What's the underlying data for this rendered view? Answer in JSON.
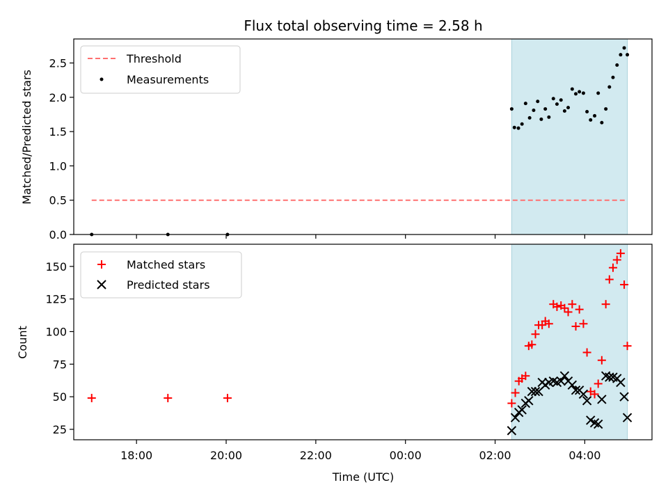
{
  "chart_data": [
    {
      "type": "scatter",
      "title": "Flux total observing time = 2.58 h",
      "ylabel": "Matched/Predicted stars",
      "xlabel": "",
      "ylim": [
        0,
        2.85
      ],
      "yticks": [
        "0.0",
        "0.5",
        "1.0",
        "1.5",
        "2.0",
        "2.5"
      ],
      "ytick_values": [
        0,
        0.5,
        1.0,
        1.5,
        2.0,
        2.5
      ],
      "legend_position": "top-left",
      "shaded_region_hours": [
        26.37,
        28.95
      ],
      "shaded_color": "#d2eaf0",
      "threshold": {
        "name": "Threshold",
        "value": 0.5,
        "x_range_hours": [
          17.0,
          28.95
        ],
        "color": "#ff7070",
        "style": "dashed"
      },
      "series": [
        {
          "name": "Measurements",
          "marker": "dot",
          "color": "#000000",
          "points": [
            [
              17.0,
              0.0
            ],
            [
              18.7,
              0.0
            ],
            [
              20.03,
              0.0
            ],
            [
              26.37,
              1.83
            ],
            [
              26.43,
              1.56
            ],
            [
              26.52,
              1.55
            ],
            [
              26.6,
              1.61
            ],
            [
              26.68,
              1.91
            ],
            [
              26.77,
              1.7
            ],
            [
              26.86,
              1.81
            ],
            [
              26.95,
              1.94
            ],
            [
              27.03,
              1.68
            ],
            [
              27.12,
              1.83
            ],
            [
              27.2,
              1.71
            ],
            [
              27.3,
              1.98
            ],
            [
              27.38,
              1.9
            ],
            [
              27.47,
              1.96
            ],
            [
              27.55,
              1.8
            ],
            [
              27.63,
              1.85
            ],
            [
              27.72,
              2.12
            ],
            [
              27.8,
              2.05
            ],
            [
              27.88,
              2.08
            ],
            [
              27.97,
              2.06
            ],
            [
              28.05,
              1.79
            ],
            [
              28.13,
              1.67
            ],
            [
              28.22,
              1.73
            ],
            [
              28.3,
              2.06
            ],
            [
              28.38,
              1.63
            ],
            [
              28.47,
              1.83
            ],
            [
              28.55,
              2.15
            ],
            [
              28.63,
              2.29
            ],
            [
              28.72,
              2.47
            ],
            [
              28.8,
              2.62
            ],
            [
              28.88,
              2.72
            ],
            [
              28.95,
              2.62
            ]
          ]
        }
      ]
    },
    {
      "type": "scatter",
      "title": "",
      "ylabel": "Count",
      "xlabel": "Time (UTC)",
      "xlim_hours": [
        16.6,
        29.5
      ],
      "xticks": [
        "18:00",
        "20:00",
        "22:00",
        "00:00",
        "02:00",
        "04:00"
      ],
      "xtick_hours": [
        18,
        20,
        22,
        24,
        26,
        28
      ],
      "ylim": [
        17,
        167
      ],
      "yticks": [
        "25",
        "50",
        "75",
        "100",
        "125",
        "150"
      ],
      "ytick_values": [
        25,
        50,
        75,
        100,
        125,
        150
      ],
      "legend_position": "top-left",
      "shaded_region_hours": [
        26.37,
        28.95
      ],
      "shaded_color": "#d2eaf0",
      "series": [
        {
          "name": "Matched stars",
          "marker": "plus",
          "color": "#ff0000",
          "points": [
            [
              17.0,
              49
            ],
            [
              18.7,
              49
            ],
            [
              20.03,
              49
            ],
            [
              26.37,
              45
            ],
            [
              26.45,
              53
            ],
            [
              26.53,
              62
            ],
            [
              26.6,
              64
            ],
            [
              26.68,
              66
            ],
            [
              26.75,
              89
            ],
            [
              26.82,
              90
            ],
            [
              26.9,
              98
            ],
            [
              26.97,
              105
            ],
            [
              27.05,
              105
            ],
            [
              27.12,
              108
            ],
            [
              27.2,
              106
            ],
            [
              27.3,
              121
            ],
            [
              27.38,
              119
            ],
            [
              27.47,
              120
            ],
            [
              27.55,
              118
            ],
            [
              27.63,
              115
            ],
            [
              27.72,
              121
            ],
            [
              27.8,
              104
            ],
            [
              27.88,
              117
            ],
            [
              27.97,
              106
            ],
            [
              28.05,
              84
            ],
            [
              28.13,
              54
            ],
            [
              28.22,
              52
            ],
            [
              28.3,
              60
            ],
            [
              28.38,
              78
            ],
            [
              28.47,
              121
            ],
            [
              28.55,
              140
            ],
            [
              28.63,
              149
            ],
            [
              28.72,
              155
            ],
            [
              28.8,
              160
            ],
            [
              28.88,
              136
            ],
            [
              28.95,
              89
            ]
          ]
        },
        {
          "name": "Predicted stars",
          "marker": "x",
          "color": "#000000",
          "points": [
            [
              26.37,
              24
            ],
            [
              26.45,
              34
            ],
            [
              26.53,
              38
            ],
            [
              26.6,
              40
            ],
            [
              26.68,
              45
            ],
            [
              26.75,
              47
            ],
            [
              26.82,
              54
            ],
            [
              26.9,
              54
            ],
            [
              26.97,
              54
            ],
            [
              27.05,
              61
            ],
            [
              27.12,
              59
            ],
            [
              27.2,
              61
            ],
            [
              27.3,
              62
            ],
            [
              27.38,
              61
            ],
            [
              27.47,
              62
            ],
            [
              27.55,
              66
            ],
            [
              27.63,
              62
            ],
            [
              27.72,
              59
            ],
            [
              27.8,
              55
            ],
            [
              27.88,
              55
            ],
            [
              27.97,
              52
            ],
            [
              28.05,
              47
            ],
            [
              28.13,
              32
            ],
            [
              28.22,
              30
            ],
            [
              28.3,
              29
            ],
            [
              28.38,
              48
            ],
            [
              28.47,
              66
            ],
            [
              28.55,
              65
            ],
            [
              28.63,
              65
            ],
            [
              28.72,
              64
            ],
            [
              28.8,
              61
            ],
            [
              28.88,
              50
            ],
            [
              28.95,
              34
            ]
          ]
        }
      ]
    }
  ]
}
